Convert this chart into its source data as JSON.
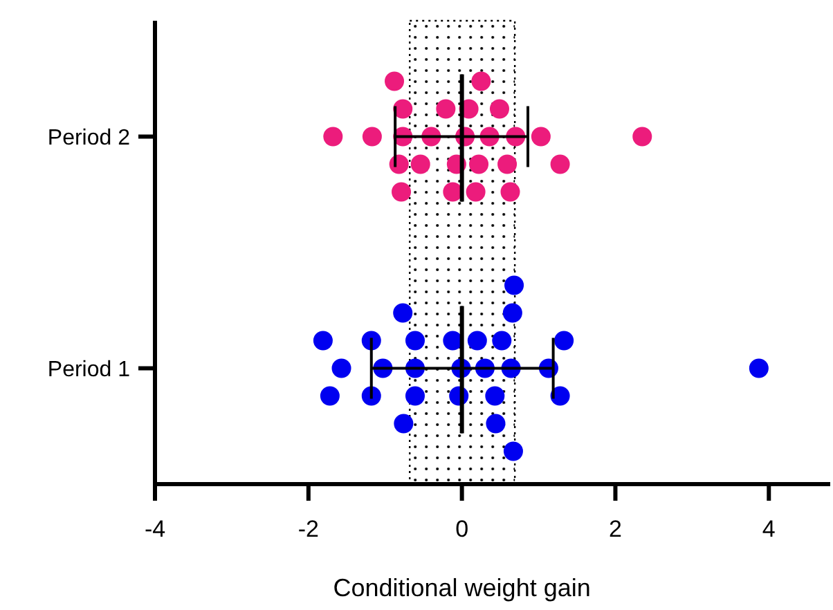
{
  "chart_data": {
    "type": "scatter",
    "orientation": "horizontal",
    "xlabel": "Conditional weight gain",
    "xlim": [
      -4,
      4.8
    ],
    "xticks": [
      -4,
      -2,
      0,
      2,
      4
    ],
    "categories": [
      "Period 2",
      "Period 1"
    ],
    "grid": false,
    "legend": false,
    "marker": "circle",
    "bands": [
      {
        "axis": "x",
        "from": -0.68,
        "to": 0.69,
        "color": "#000000"
      }
    ],
    "series": [
      {
        "color": "#ec1c7c",
        "x": [
          "Period 2",
          "Period 2",
          "Period 2",
          "Period 2",
          "Period 2",
          "Period 2",
          "Period 2",
          "Period 2",
          "Period 2",
          "Period 2",
          "Period 2",
          "Period 2",
          "Period 2",
          "Period 2",
          "Period 2",
          "Period 2",
          "Period 2",
          "Period 2",
          "Period 2",
          "Period 2",
          "Period 2",
          "Period 2",
          "Period 2",
          "Period 2",
          "Period 2"
        ],
        "values": [
          -0.82,
          -0.54,
          0.04,
          0.36,
          0.63,
          -0.77,
          -0.12,
          0.18,
          0.49,
          -1.68,
          -1.17,
          -0.88,
          -0.21,
          0.09,
          0.59,
          1.03,
          1.28,
          2.35,
          -0.77,
          -0.4,
          -0.07,
          0.22,
          0.7,
          -0.79,
          0.25
        ]
      },
      {
        "color": "#0000f0",
        "x": [
          "Period 1",
          "Period 1",
          "Period 1",
          "Period 1",
          "Period 1",
          "Period 1",
          "Period 1",
          "Period 1",
          "Period 1",
          "Period 1",
          "Period 1",
          "Period 1",
          "Period 1",
          "Period 1",
          "Period 1",
          "Period 1",
          "Period 1",
          "Period 1",
          "Period 1",
          "Period 1",
          "Period 1",
          "Period 1",
          "Period 1",
          "Period 1",
          "Period 1",
          "Period 1",
          "Period 1"
        ],
        "values": [
          -1.72,
          -1.57,
          -1.81,
          -1.18,
          -1.18,
          -1.03,
          -0.76,
          -0.77,
          -0.61,
          -0.61,
          -0.61,
          -0.12,
          -0.01,
          -0.04,
          0.2,
          0.3,
          0.43,
          0.44,
          0.52,
          0.66,
          0.68,
          0.67,
          0.64,
          1.28,
          1.13,
          1.33,
          3.87
        ]
      },
      {
        "type": "box",
        "color": "#000000",
        "boxes": [
          {
            "low": -0.87,
            "q1": 0,
            "median": 0,
            "q3": 0,
            "high": 0.86
          },
          {
            "low": -1.18,
            "q1": 0,
            "median": 0,
            "q3": 0,
            "high": 1.19
          }
        ]
      }
    ]
  }
}
